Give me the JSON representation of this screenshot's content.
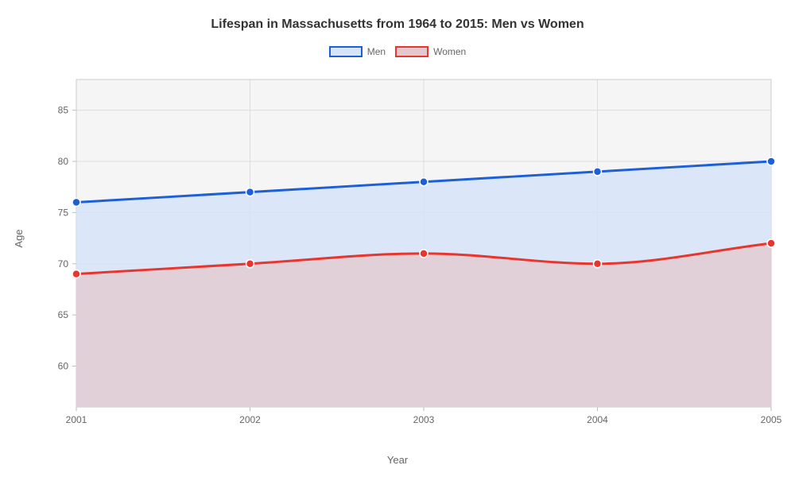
{
  "chart": {
    "type": "area-line",
    "title": "Lifespan in Massachusetts from 1964 to 2015: Men vs Women",
    "title_fontsize": 16,
    "title_fontweight": 700,
    "title_color": "#333333",
    "xlabel": "Year",
    "ylabel": "Age",
    "axis_label_fontsize": 13,
    "axis_label_color": "#666666",
    "tick_label_fontsize": 12,
    "tick_label_color": "#666666",
    "background_color": "#ffffff",
    "plot_background_color": "#f5f5f5",
    "grid_color": "#dddddd",
    "xlim": [
      2001,
      2005
    ],
    "ylim": [
      56,
      88
    ],
    "xticks": [
      2001,
      2002,
      2003,
      2004,
      2005
    ],
    "yticks": [
      60,
      65,
      70,
      75,
      80,
      85
    ],
    "xtick_labels": [
      "2001",
      "2002",
      "2003",
      "2004",
      "2005"
    ],
    "ytick_labels": [
      "60",
      "65",
      "70",
      "75",
      "80",
      "85"
    ],
    "legend": {
      "items": [
        {
          "label": "Men",
          "stroke": "#1d5fd6",
          "fill": "#d6e3f8"
        },
        {
          "label": "Women",
          "stroke": "#e8352e",
          "fill": "#e3c8cd"
        }
      ],
      "swatch_width": 42,
      "swatch_height": 14,
      "label_fontsize": 12,
      "label_color": "#666666"
    },
    "series": [
      {
        "name": "Men",
        "x": [
          2001,
          2002,
          2003,
          2004,
          2005
        ],
        "y": [
          76,
          77,
          78,
          79,
          80
        ],
        "stroke": "#1d5fd6",
        "fill": "#d6e3f8",
        "fill_opacity": 0.85,
        "line_width": 3,
        "marker": "circle",
        "marker_size": 5,
        "marker_fill": "#1d5fd6",
        "marker_stroke": "#ffffff",
        "marker_stroke_width": 1.5,
        "curve": "monotone"
      },
      {
        "name": "Women",
        "x": [
          2001,
          2002,
          2003,
          2004,
          2005
        ],
        "y": [
          69,
          70,
          71,
          70,
          72
        ],
        "stroke": "#e8352e",
        "fill": "#e3c8cd",
        "fill_opacity": 0.75,
        "line_width": 3,
        "marker": "circle",
        "marker_size": 5,
        "marker_fill": "#e8352e",
        "marker_stroke": "#ffffff",
        "marker_stroke_width": 1.5,
        "curve": "monotone"
      }
    ]
  }
}
